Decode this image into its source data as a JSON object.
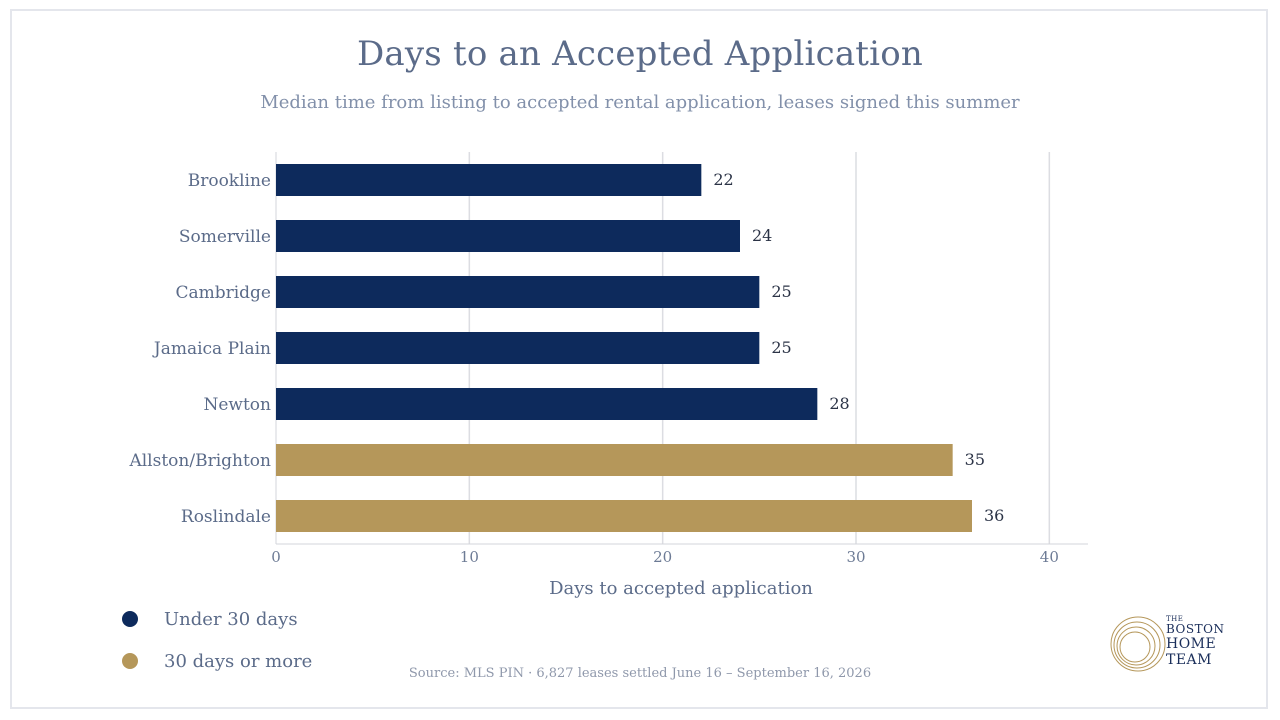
{
  "title": "Days to an Accepted Application",
  "subtitle": "Median time from listing to accepted rental application, leases signed this summer",
  "source": "Source: MLS PIN · 6,827 leases settled June 16 – September 16, 2026",
  "legend": [
    {
      "label": "Under 30 days",
      "color": "#0d2a5c"
    },
    {
      "label": "30 days or more",
      "color": "#b5975a"
    }
  ],
  "logo": {
    "line1": "THE",
    "line2": "BOSTON",
    "line3": "HOME",
    "line4": "TEAM",
    "color": "#1a2e5a",
    "ring_color": "#b5975a"
  },
  "chart_data": {
    "type": "bar",
    "orientation": "horizontal",
    "categories": [
      "Brookline",
      "Somerville",
      "Cambridge",
      "Jamaica Plain",
      "Newton",
      "Allston/Brighton",
      "Roslindale"
    ],
    "values": [
      22,
      24,
      25,
      25,
      28,
      35,
      36
    ],
    "groups": [
      "Under 30 days",
      "Under 30 days",
      "Under 30 days",
      "Under 30 days",
      "Under 30 days",
      "30 days or more",
      "30 days or more"
    ],
    "xlabel": "Days to accepted application",
    "xlim": [
      0,
      42
    ],
    "xticks": [
      0,
      10,
      20,
      30,
      40
    ],
    "grid": true,
    "legend_position": "bottom-left",
    "colors": {
      "Under 30 days": "#0d2a5c",
      "30 days or more": "#b5975a"
    }
  }
}
